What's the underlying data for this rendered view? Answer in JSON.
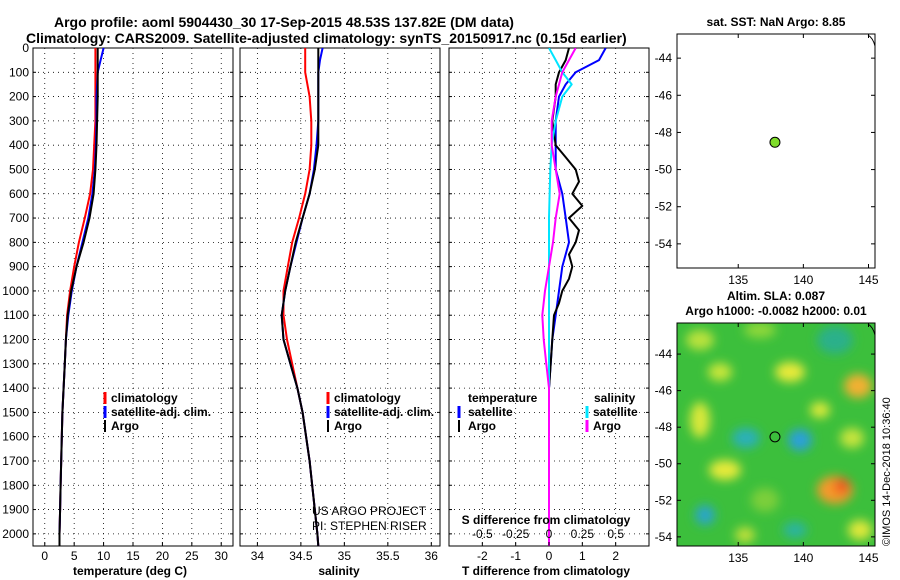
{
  "header": {
    "line1": "Argo profile: aoml 5904430_30 17-Sep-2015 48.53S 137.82E (DM data)",
    "line2": "Climatology: CARS2009. Satellite-adjusted climatology: synTS_20150917.nc (0.15d earlier)"
  },
  "colors": {
    "climatology": "#ff0000",
    "satellite": "#0000ff",
    "argo": "#000000",
    "sal_satellite": "#00e5ff",
    "sal_argo": "#ff00ff",
    "sst_dot": "#7fdc2a"
  },
  "chart_data": [
    {
      "type": "line",
      "title": "",
      "xlabel": "temperature (deg C)",
      "xticks": [
        "0",
        "5",
        "10",
        "15",
        "20",
        "25",
        "30"
      ],
      "xlim": [
        -2,
        32
      ],
      "ylim": [
        2050,
        0
      ],
      "yticks": [
        "0",
        "100",
        "200",
        "300",
        "400",
        "500",
        "600",
        "700",
        "800",
        "900",
        "1000",
        "1100",
        "1200",
        "1300",
        "1400",
        "1500",
        "1600",
        "1700",
        "1800",
        "1900",
        "2000"
      ],
      "legend": [
        "climatology",
        "satellite-adj. clim.",
        "Argo"
      ],
      "series": [
        {
          "name": "climatology",
          "color": "#ff0000",
          "depth": [
            0,
            100,
            200,
            300,
            400,
            500,
            600,
            700,
            800,
            900,
            1000,
            1100,
            1200,
            1300,
            1400,
            1500,
            1600,
            1700,
            1800,
            1900,
            2000,
            2050
          ],
          "values": [
            8.6,
            8.6,
            8.6,
            8.6,
            8.4,
            8.2,
            7.7,
            6.8,
            5.8,
            5.0,
            4.3,
            3.8,
            3.6,
            3.4,
            3.2,
            3.0,
            2.9,
            2.8,
            2.7,
            2.6,
            2.5,
            2.5
          ]
        },
        {
          "name": "satellite-adj. clim.",
          "color": "#0000ff",
          "depth": [
            0,
            50,
            100,
            200,
            300,
            400,
            500,
            600,
            700,
            800,
            900,
            1000,
            1100,
            1200,
            1300,
            1400,
            1500,
            1600,
            1700,
            1800,
            1900,
            2000,
            2050
          ],
          "values": [
            10.0,
            9.5,
            9.0,
            8.8,
            8.8,
            8.7,
            8.5,
            8.1,
            7.4,
            6.4,
            5.4,
            4.6,
            4.0,
            3.6,
            3.4,
            3.2,
            3.0,
            2.9,
            2.8,
            2.7,
            2.6,
            2.5,
            2.5
          ]
        },
        {
          "name": "Argo",
          "color": "#000000",
          "depth": [
            0,
            100,
            200,
            300,
            400,
            500,
            600,
            700,
            800,
            900,
            1000,
            1100,
            1200,
            1300,
            1400,
            1500,
            1600,
            1700,
            1800,
            1900,
            2000,
            2050
          ],
          "values": [
            9.0,
            9.0,
            9.0,
            8.9,
            8.8,
            8.6,
            8.3,
            7.6,
            6.6,
            5.4,
            4.5,
            3.9,
            3.6,
            3.4,
            3.2,
            3.0,
            2.9,
            2.8,
            2.7,
            2.6,
            2.5,
            2.5
          ]
        }
      ]
    },
    {
      "type": "line",
      "xlabel": "salinity",
      "xticks": [
        "34",
        "34.5",
        "35",
        "35.5",
        "36"
      ],
      "xlim": [
        33.8,
        36.1
      ],
      "ylim": [
        2050,
        0
      ],
      "legend": [
        "climatology",
        "satellite-adj. clim.",
        "Argo"
      ],
      "credit1": "US ARGO PROJECT",
      "credit2": "PI: STEPHEN RISER",
      "series": [
        {
          "name": "climatology",
          "color": "#ff0000",
          "depth": [
            0,
            100,
            200,
            300,
            400,
            500,
            600,
            700,
            800,
            900,
            1000,
            1100,
            1200,
            1300,
            1400,
            1500,
            1600,
            1700,
            1800,
            1900,
            2000,
            2050
          ],
          "values": [
            34.55,
            34.55,
            34.6,
            34.62,
            34.62,
            34.6,
            34.55,
            34.48,
            34.4,
            34.35,
            34.3,
            34.3,
            34.34,
            34.4,
            34.46,
            34.52,
            34.56,
            34.6,
            34.63,
            34.66,
            34.69,
            34.7
          ]
        },
        {
          "name": "satellite-adj. clim.",
          "color": "#0000ff",
          "depth": [
            0,
            50,
            100,
            200,
            300,
            400,
            500,
            600,
            700,
            800,
            900,
            1000,
            1100,
            1200,
            1300,
            1400,
            1500,
            1600,
            1700,
            1800,
            1900,
            2000,
            2050
          ],
          "values": [
            34.75,
            34.72,
            34.7,
            34.7,
            34.7,
            34.68,
            34.65,
            34.6,
            34.52,
            34.45,
            34.38,
            34.32,
            34.28,
            34.3,
            34.38,
            34.46,
            34.52,
            34.56,
            34.6,
            34.63,
            34.66,
            34.69,
            34.7
          ]
        },
        {
          "name": "Argo",
          "color": "#000000",
          "depth": [
            0,
            100,
            200,
            300,
            400,
            500,
            600,
            700,
            800,
            900,
            1000,
            1100,
            1200,
            1300,
            1400,
            1500,
            1600,
            1700,
            1800,
            1900,
            2000,
            2050
          ],
          "values": [
            34.7,
            34.7,
            34.7,
            34.7,
            34.7,
            34.66,
            34.6,
            34.52,
            34.44,
            34.38,
            34.32,
            34.28,
            34.3,
            34.38,
            34.46,
            34.52,
            34.56,
            34.6,
            34.63,
            34.66,
            34.69,
            34.7
          ]
        }
      ]
    },
    {
      "type": "line",
      "xlabel": "T difference from climatology",
      "xticks": [
        "-2",
        "-1",
        "0",
        "1",
        "2"
      ],
      "xlim": [
        -3,
        3
      ],
      "xlabel2": "S difference from climatology",
      "xticks2": [
        "-0.5",
        "-0.25",
        "0",
        "0.25",
        "0.5"
      ],
      "ylim": [
        2050,
        0
      ],
      "legend_left_title": "temperature",
      "legend_right_title": "salinity",
      "legend": [
        "satellite",
        "Argo",
        "satellite",
        "Argo"
      ],
      "series": [
        {
          "name": "temperature satellite",
          "color": "#0000ff",
          "depth": [
            0,
            50,
            100,
            150,
            200,
            300,
            400,
            500,
            600,
            700,
            800,
            900,
            1000,
            1100,
            1200,
            1300,
            1400,
            1600,
            1800,
            2000,
            2050
          ],
          "values": [
            1.7,
            1.5,
            0.8,
            0.5,
            0.3,
            0.2,
            0.2,
            0.2,
            0.4,
            0.5,
            0.6,
            0.4,
            0.3,
            0.2,
            0.1,
            0.05,
            0.0,
            0.0,
            0.0,
            0.0,
            0.0
          ]
        },
        {
          "name": "temperature Argo",
          "color": "#000000",
          "depth": [
            0,
            50,
            100,
            150,
            200,
            300,
            400,
            450,
            500,
            550,
            600,
            650,
            700,
            750,
            800,
            850,
            900,
            950,
            1000,
            1050,
            1100,
            1200,
            1300,
            1400,
            1600,
            1800,
            2000,
            2050
          ],
          "values": [
            0.6,
            0.5,
            0.3,
            0.2,
            0.2,
            0.1,
            0.2,
            0.5,
            0.8,
            0.9,
            0.7,
            1.0,
            0.6,
            0.9,
            0.8,
            0.6,
            0.7,
            0.6,
            0.4,
            0.3,
            0.15,
            0.1,
            0.05,
            0.0,
            0.0,
            0.0,
            0.0,
            0.0
          ]
        },
        {
          "name": "salinity satellite",
          "color": "#00e5ff",
          "depth": [
            0,
            50,
            100,
            150,
            200,
            300,
            400,
            500,
            700,
            900,
            1100,
            1300,
            1500,
            1700,
            1900,
            2050
          ],
          "values": [
            0.0,
            0.05,
            0.1,
            0.17,
            0.1,
            0.05,
            0.02,
            0.01,
            0.0,
            0.0,
            0.0,
            0.0,
            0.0,
            0.0,
            0.0,
            0.0
          ]
        },
        {
          "name": "salinity Argo",
          "color": "#ff00ff",
          "depth": [
            0,
            50,
            100,
            200,
            300,
            400,
            500,
            600,
            700,
            800,
            900,
            1000,
            1100,
            1200,
            1300,
            1400,
            1500,
            1700,
            1900,
            2050
          ],
          "values": [
            0.2,
            0.15,
            0.1,
            0.05,
            0.02,
            0.02,
            0.05,
            0.08,
            0.05,
            0.03,
            0.0,
            -0.03,
            -0.05,
            -0.04,
            -0.02,
            0.0,
            0.0,
            0.0,
            0.0,
            0.0
          ]
        }
      ]
    },
    {
      "type": "scatter",
      "title": "sat. SST: NaN Argo: 8.85",
      "xticks": [
        "135",
        "140",
        "145"
      ],
      "xlim": [
        130.3,
        145.5
      ],
      "yticks": [
        "-44",
        "-46",
        "-48",
        "-50",
        "-52",
        "-54"
      ],
      "ylim": [
        -55.3,
        -42.7
      ],
      "points": [
        {
          "x": 137.82,
          "y": -48.53
        }
      ]
    },
    {
      "type": "heatmap",
      "title": "Altim. SLA: 0.087",
      "subtitle": "Argo h1000: -0.0082 h2000: 0.01",
      "xticks": [
        "135",
        "140",
        "145"
      ],
      "xlim": [
        130.3,
        145.5
      ],
      "yticks": [
        "-44",
        "-46",
        "-48",
        "-50",
        "-52",
        "-54"
      ],
      "ylim": [
        -54.5,
        -42.3
      ],
      "points": [
        {
          "x": 137.82,
          "y": -48.53
        }
      ],
      "watermark": "©IMOS 14-Dec-2018 10:36:40"
    }
  ]
}
